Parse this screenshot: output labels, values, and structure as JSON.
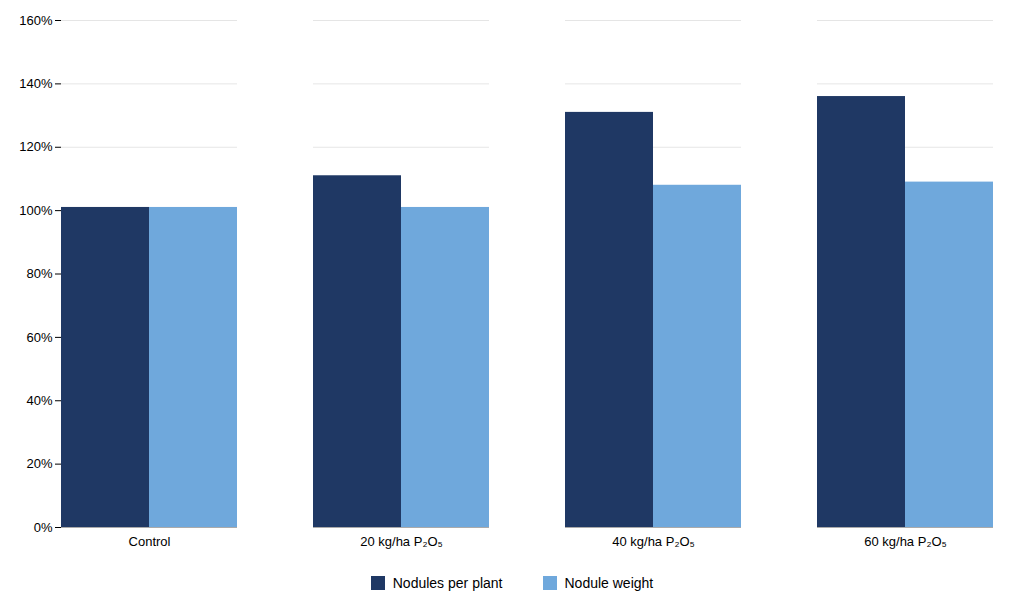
{
  "chart_data": {
    "type": "bar",
    "categories": [
      "Control",
      "20 kg/ha P₂O₅",
      "40 kg/ha P₂O₅",
      "60 kg/ha P₂O₅"
    ],
    "series": [
      {
        "name": "Nodules per plant",
        "color": "#1f3864",
        "values": [
          101,
          111,
          131,
          136
        ]
      },
      {
        "name": "Nodule weight",
        "color": "#6fa8dc",
        "values": [
          101,
          101,
          108,
          109
        ]
      }
    ],
    "ylim": [
      0,
      160
    ],
    "yticks": [
      {
        "value": 0,
        "label": "0%"
      },
      {
        "value": 20,
        "label": "20%"
      },
      {
        "value": 40,
        "label": "40%"
      },
      {
        "value": 60,
        "label": "60%"
      },
      {
        "value": 80,
        "label": "80%"
      },
      {
        "value": 100,
        "label": "100%"
      },
      {
        "value": 120,
        "label": "120%"
      },
      {
        "value": 140,
        "label": "140%"
      },
      {
        "value": 160,
        "label": "160%"
      }
    ],
    "grid": true,
    "legend": "bottom"
  }
}
